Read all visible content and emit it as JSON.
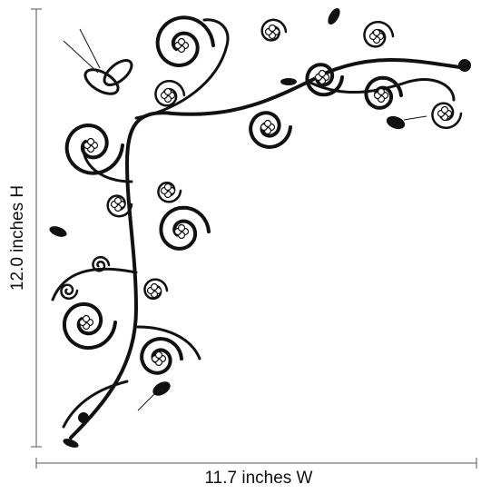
{
  "dimensions": {
    "height_label": "12.0 inches H",
    "width_label": "11.7 inches W"
  }
}
